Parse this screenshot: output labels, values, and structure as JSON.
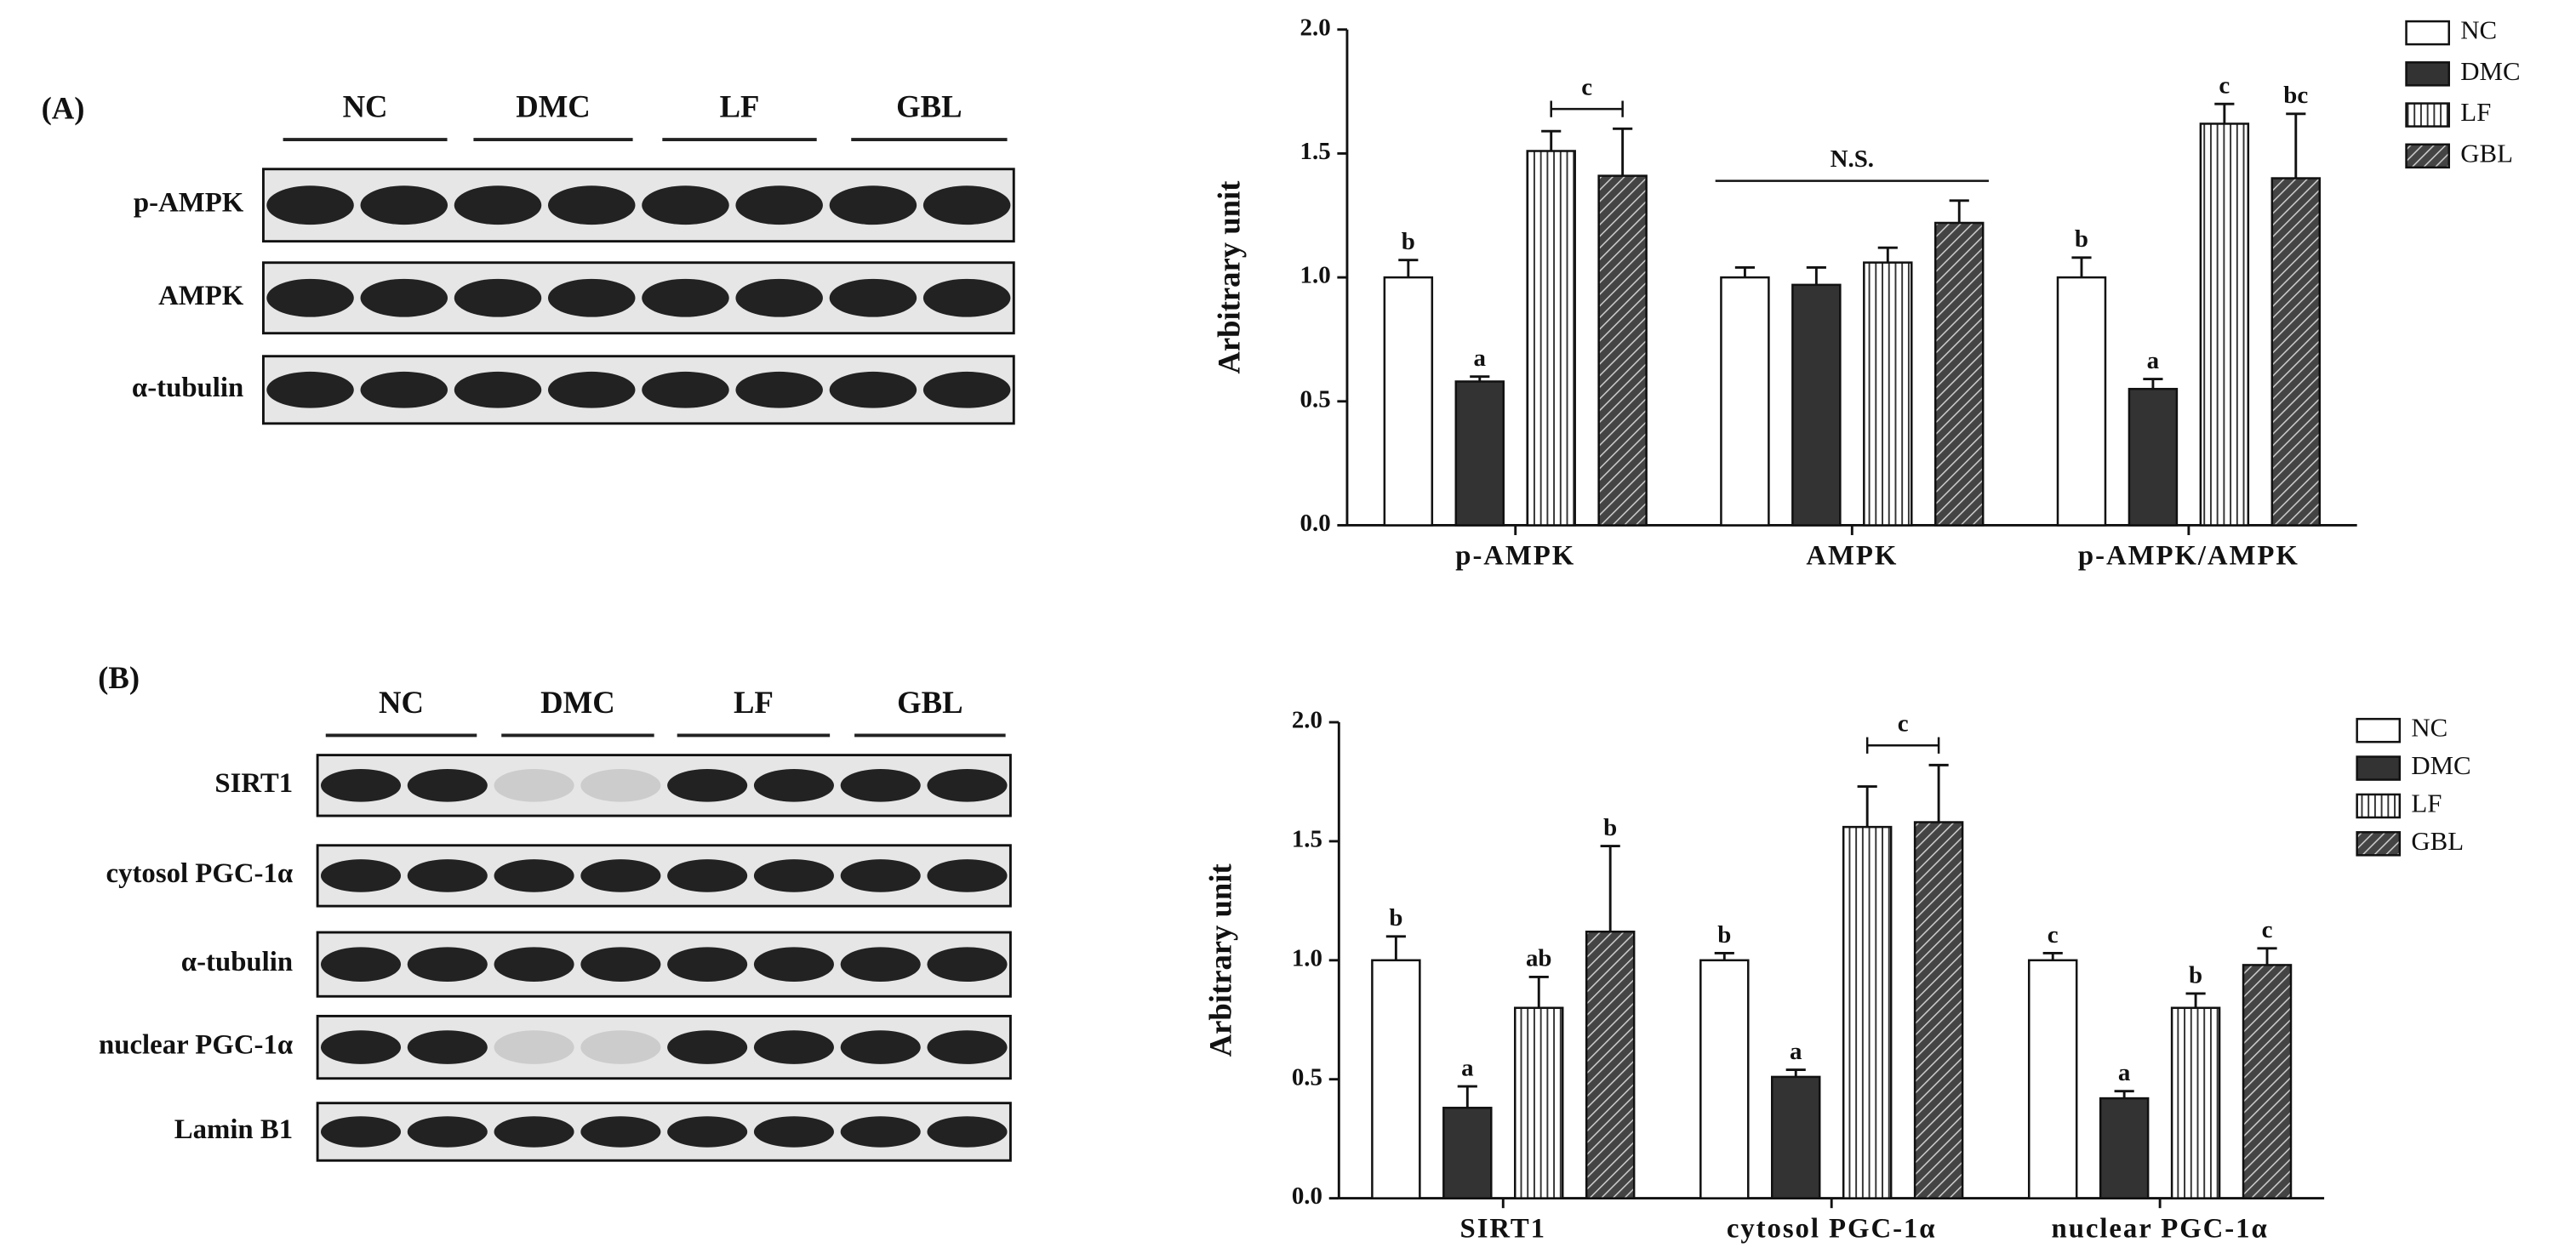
{
  "panels": [
    {
      "label": "(A)",
      "groups": [
        "NC",
        "DMC",
        "LF",
        "GBL"
      ],
      "rows": [
        "p-AMPK",
        "AMPK",
        "α-tubulin"
      ]
    },
    {
      "label": "(B)",
      "groups": [
        "NC",
        "DMC",
        "LF",
        "GBL"
      ],
      "rows": [
        "SIRT1",
        "cytosol PGC-1α",
        "α-tubulin",
        "nuclear PGC-1α",
        "Lamin B1"
      ]
    }
  ],
  "chart_data": [
    {
      "type": "bar",
      "ylabel": "Arbitrary unit",
      "categories": [
        "p-AMPK",
        "AMPK",
        "p-AMPK/AMPK"
      ],
      "ylim": [
        0,
        2
      ],
      "yticks": [
        {
          "value": 0,
          "label": "0.0"
        },
        0.5,
        {
          "value": 1,
          "label": "1.0"
        },
        1.5,
        {
          "value": 2,
          "label": "2.0"
        }
      ],
      "legend": "outside upper right",
      "series": [
        {
          "name": "NC",
          "color": "#ffffff",
          "hatch": null,
          "values": [
            1.0,
            1.0,
            1.0
          ],
          "errors": [
            0.07,
            0.04,
            0.08
          ],
          "letters": [
            "b",
            null,
            "b"
          ]
        },
        {
          "name": "DMC",
          "color": "#333333",
          "hatch": null,
          "values": [
            0.58,
            0.97,
            0.55
          ],
          "errors": [
            0.02,
            0.07,
            0.04
          ],
          "letters": [
            "a",
            null,
            "a"
          ]
        },
        {
          "name": "LF",
          "color": "#ffffff",
          "hatch": "vertical",
          "values": [
            1.51,
            1.06,
            1.62
          ],
          "errors": [
            0.08,
            0.06,
            0.08
          ],
          "letters": [
            null,
            null,
            "c"
          ]
        },
        {
          "name": "GBL",
          "color": "#555555",
          "hatch": "diagonal",
          "values": [
            1.41,
            1.22,
            1.4
          ],
          "errors": [
            0.19,
            0.09,
            0.26
          ],
          "letters": [
            null,
            null,
            "bc"
          ]
        }
      ],
      "annotations": [
        {
          "text": "c",
          "category": 0,
          "series_from": 2,
          "series_to": 3,
          "style": "bracket"
        },
        {
          "text": "N.S.",
          "category": 1,
          "series_from": 0,
          "series_to": 3,
          "style": "line"
        }
      ]
    },
    {
      "type": "bar",
      "ylabel": "Arbitrary unit",
      "categories": [
        "SIRT1",
        "cytosol PGC-1α",
        "nuclear PGC-1α"
      ],
      "ylim": [
        0,
        2
      ],
      "yticks": [
        {
          "value": 0,
          "label": "0.0"
        },
        0.5,
        {
          "value": 1,
          "label": "1.0"
        },
        1.5,
        {
          "value": 2,
          "label": "2.0"
        }
      ],
      "legend": "outside upper right",
      "series": [
        {
          "name": "NC",
          "color": "#ffffff",
          "hatch": null,
          "values": [
            1.0,
            1.0,
            1.0
          ],
          "errors": [
            0.1,
            0.03,
            0.03
          ],
          "letters": [
            "b",
            "b",
            "c"
          ]
        },
        {
          "name": "DMC",
          "color": "#333333",
          "hatch": null,
          "values": [
            0.38,
            0.51,
            0.42
          ],
          "errors": [
            0.09,
            0.03,
            0.03
          ],
          "letters": [
            "a",
            "a",
            "a"
          ]
        },
        {
          "name": "LF",
          "color": "#ffffff",
          "hatch": "vertical",
          "values": [
            0.8,
            1.56,
            0.8
          ],
          "errors": [
            0.13,
            0.17,
            0.06
          ],
          "letters": [
            "ab",
            null,
            "b"
          ]
        },
        {
          "name": "GBL",
          "color": "#555555",
          "hatch": "diagonal",
          "values": [
            1.12,
            1.58,
            0.98
          ],
          "errors": [
            0.36,
            0.24,
            0.07
          ],
          "letters": [
            "b",
            null,
            "c"
          ]
        }
      ],
      "annotations": [
        {
          "text": "c",
          "category": 1,
          "series_from": 2,
          "series_to": 3,
          "style": "bracket"
        }
      ]
    }
  ]
}
